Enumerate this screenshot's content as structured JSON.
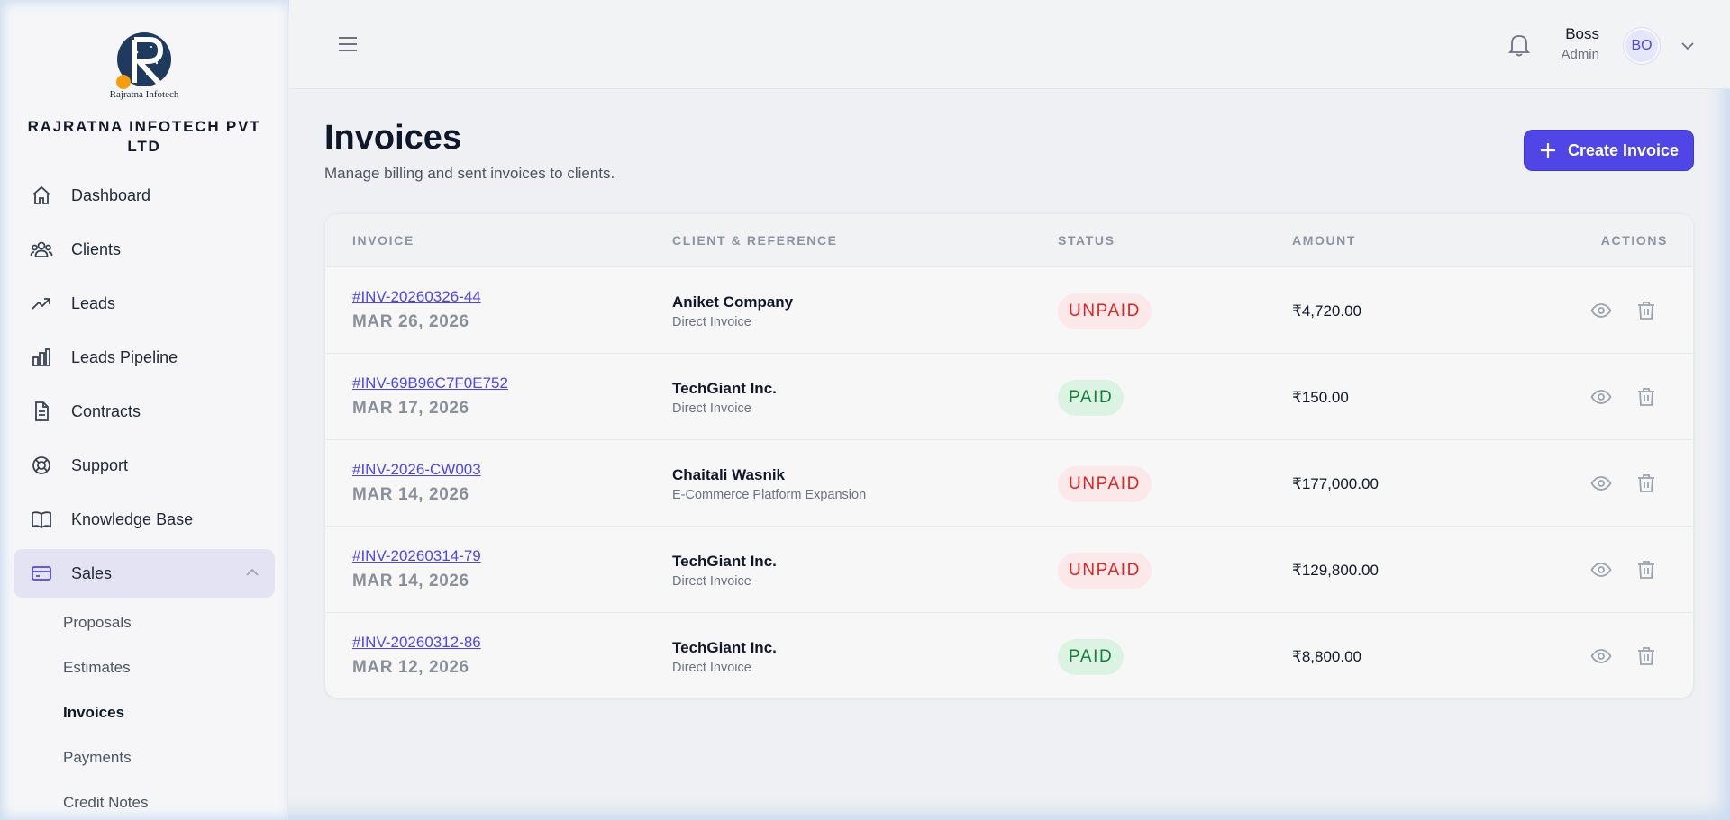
{
  "brand": {
    "logo_caption": "Rajratna Infotech",
    "company_name": "RAJRATNA INFOTECH PVT LTD"
  },
  "sidebar": {
    "items": [
      {
        "label": "Dashboard",
        "icon": "home-icon"
      },
      {
        "label": "Clients",
        "icon": "users-icon"
      },
      {
        "label": "Leads",
        "icon": "trending-up-icon"
      },
      {
        "label": "Leads Pipeline",
        "icon": "bar-chart-icon"
      },
      {
        "label": "Contracts",
        "icon": "document-icon"
      },
      {
        "label": "Support",
        "icon": "lifebuoy-icon"
      },
      {
        "label": "Knowledge Base",
        "icon": "book-icon"
      },
      {
        "label": "Sales",
        "icon": "credit-card-icon",
        "expanded": true
      }
    ],
    "sales_sub": [
      "Proposals",
      "Estimates",
      "Invoices",
      "Payments",
      "Credit Notes"
    ],
    "current_sub": "Invoices"
  },
  "header": {
    "user_name": "Boss",
    "user_role": "Admin",
    "avatar_initials": "BO"
  },
  "page": {
    "title": "Invoices",
    "subtitle": "Manage billing and sent invoices to clients.",
    "create_label": "Create Invoice"
  },
  "table": {
    "columns": [
      "INVOICE",
      "CLIENT & REFERENCE",
      "STATUS",
      "AMOUNT",
      "ACTIONS"
    ],
    "rows": [
      {
        "id": "#INV-20260326-44",
        "date": "MAR 26, 2026",
        "client": "Aniket Company",
        "ref": "Direct Invoice",
        "status": "UNPAID",
        "amount": "₹4,720.00"
      },
      {
        "id": "#INV-69B96C7F0E752",
        "date": "MAR 17, 2026",
        "client": "TechGiant Inc.",
        "ref": "Direct Invoice",
        "status": "PAID",
        "amount": "₹150.00"
      },
      {
        "id": "#INV-2026-CW003",
        "date": "MAR 14, 2026",
        "client": "Chaitali Wasnik",
        "ref": "E-Commerce Platform Expansion",
        "status": "UNPAID",
        "amount": "₹177,000.00"
      },
      {
        "id": "#INV-20260314-79",
        "date": "MAR 14, 2026",
        "client": "TechGiant Inc.",
        "ref": "Direct Invoice",
        "status": "UNPAID",
        "amount": "₹129,800.00"
      },
      {
        "id": "#INV-20260312-86",
        "date": "MAR 12, 2026",
        "client": "TechGiant Inc.",
        "ref": "Direct Invoice",
        "status": "PAID",
        "amount": "₹8,800.00"
      }
    ]
  },
  "colors": {
    "accent": "#4f46e5",
    "unpaid_text": "#dc2626",
    "unpaid_bg": "#fbe9e9",
    "paid_text": "#15803d",
    "paid_bg": "#dcf3e3",
    "logo_navy": "#1e3a5f",
    "logo_orange": "#f59e0b"
  }
}
